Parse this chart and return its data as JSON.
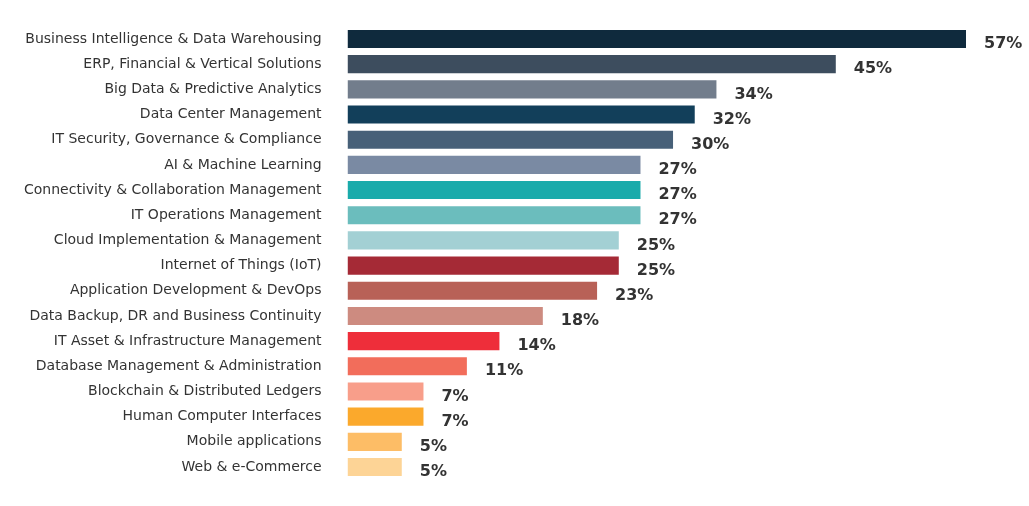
{
  "chart_data": {
    "type": "bar",
    "orientation": "horizontal",
    "categories": [
      "Business Intelligence & Data Warehousing",
      "ERP, Financial & Vertical Solutions",
      "Big Data & Predictive Analytics",
      "Data Center Management",
      "IT Security, Governance & Compliance",
      "AI & Machine Learning",
      "Connectivity & Collaboration Management",
      "IT Operations Management",
      "Cloud Implementation & Management",
      "Internet of Things (IoT)",
      "Application Development & DevOps",
      "Data Backup, DR and Business Continuity",
      "IT Asset & Infrastructure Management",
      "Database Management & Administration",
      "Blockchain & Distributed Ledgers",
      "Human Computer Interfaces",
      "Mobile applications",
      "Web & e-Commerce"
    ],
    "values": [
      57,
      45,
      34,
      32,
      30,
      27,
      27,
      27,
      25,
      25,
      23,
      18,
      14,
      11,
      7,
      7,
      5,
      5
    ],
    "value_labels": [
      "57%",
      "45%",
      "34%",
      "32%",
      "30%",
      "27%",
      "27%",
      "27%",
      "25%",
      "25%",
      "23%",
      "18%",
      "14%",
      "11%",
      "7%",
      "7%",
      "5%",
      "5%"
    ],
    "colors": [
      "#0f2a3d",
      "#3d4d5e",
      "#727d8c",
      "#123f5a",
      "#476078",
      "#7a8aa3",
      "#1aabab",
      "#6bbdbd",
      "#a3d0d4",
      "#a52a36",
      "#b86157",
      "#cd8b80",
      "#ee2e3a",
      "#f26d5b",
      "#f89e8a",
      "#fba92c",
      "#fdbd66",
      "#fdd496"
    ]
  }
}
